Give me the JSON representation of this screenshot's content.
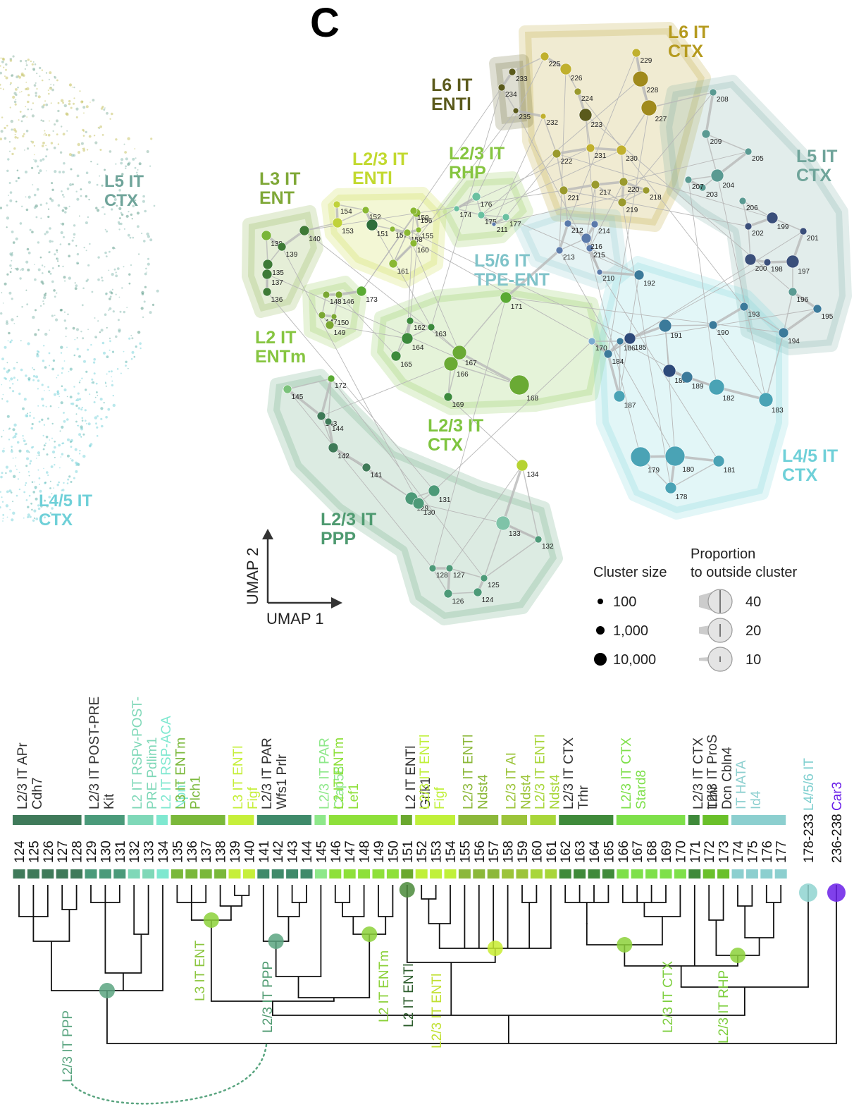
{
  "panel": "C",
  "left_labels": [
    {
      "lines": [
        "L5 IT",
        "CTX"
      ],
      "color": "#6fa49a"
    },
    {
      "lines": [
        "L4/5 IT",
        "CTX"
      ],
      "color": "#6fd0d8"
    }
  ],
  "umap": {
    "groups": [
      {
        "lines": [
          "L6 IT",
          "CTX"
        ],
        "color": "#b59a1e"
      },
      {
        "lines": [
          "L6 IT",
          "ENTl"
        ],
        "color": "#5b5a1c"
      },
      {
        "lines": [
          "L5 IT",
          "CTX"
        ],
        "color": "#6fa49a"
      },
      {
        "lines": [
          "L2/3 IT",
          "ENTl"
        ],
        "color": "#c2d92e"
      },
      {
        "lines": [
          "L2/3 IT",
          "RHP"
        ],
        "color": "#86c540"
      },
      {
        "lines": [
          "L3 IT",
          "ENT"
        ],
        "color": "#7fa837"
      },
      {
        "lines": [
          "L5/6 IT",
          "TPE-ENT"
        ],
        "color": "#7fc3c9"
      },
      {
        "lines": [
          "L2 IT",
          "ENTm"
        ],
        "color": "#86c540"
      },
      {
        "lines": [
          "L2/3 IT",
          "CTX"
        ],
        "color": "#7ec43f"
      },
      {
        "lines": [
          "L4/5 IT",
          "CTX"
        ],
        "color": "#6fd0d8"
      },
      {
        "lines": [
          "L2/3 IT",
          "PPP"
        ],
        "color": "#4e9a70"
      }
    ],
    "nodes": [
      "124",
      "125",
      "126",
      "127",
      "128",
      "129",
      "130",
      "131",
      "132",
      "133",
      "134",
      "135",
      "136",
      "137",
      "138",
      "139",
      "140",
      "141",
      "142",
      "143",
      "144",
      "145",
      "146",
      "147",
      "148",
      "149",
      "150",
      "151",
      "152",
      "153",
      "154",
      "155",
      "156",
      "157",
      "158",
      "159",
      "160",
      "161",
      "162",
      "163",
      "164",
      "165",
      "166",
      "167",
      "168",
      "169",
      "170",
      "171",
      "172",
      "173",
      "174",
      "175",
      "176",
      "177",
      "178",
      "179",
      "180",
      "181",
      "182",
      "183",
      "184",
      "185",
      "186",
      "187",
      "188",
      "189",
      "190",
      "191",
      "192",
      "193",
      "194",
      "195",
      "196",
      "197",
      "198",
      "199",
      "200",
      "201",
      "202",
      "203",
      "204",
      "205",
      "206",
      "207",
      "208",
      "209",
      "210",
      "211",
      "212",
      "213",
      "214",
      "215",
      "216",
      "217",
      "218",
      "219",
      "220",
      "221",
      "222",
      "223",
      "224",
      "225",
      "226",
      "227",
      "228",
      "229",
      "230",
      "231",
      "232",
      "233",
      "234",
      "235"
    ],
    "axes": {
      "y": "UMAP 2",
      "x": "UMAP 1"
    }
  },
  "legend": {
    "size_title": "Cluster size",
    "sizes": [
      "100",
      "1,000",
      "10,000"
    ],
    "proportion_title": [
      "Proportion",
      "to outside cluster"
    ],
    "proportions": [
      "40",
      "20",
      "10"
    ]
  },
  "dendrogram": {
    "groups": [
      {
        "lines": [
          "L2/3 IT APr",
          "Cdh7"
        ],
        "color": "#3f7a5a"
      },
      {
        "lines": [
          "L2/3 IT POST-PRE",
          "Kit"
        ],
        "color": "#4a9a7a"
      },
      {
        "lines": [
          "L2 IT RSPv-POST-",
          "PRE Pdlim1"
        ],
        "color": "#7fd8b8"
      },
      {
        "lines": [
          "L2 IT RSP-ACA",
          "Npnt"
        ],
        "color": "#7fe8d0"
      },
      {
        "lines": [
          "L3 IT ENTm",
          "Plch1"
        ],
        "color": "#7ab83a"
      },
      {
        "lines": [
          "L3 IT ENTl",
          "Figf"
        ],
        "color": "#c6ef3a"
      },
      {
        "lines": [
          "L2/3 IT PAR",
          "Wfs1 Prlr"
        ],
        "color": "#3f8a6a"
      },
      {
        "lines": [
          "L2/3 IT PAR",
          "Cfap58"
        ],
        "color": "#8ee88a"
      },
      {
        "lines": [
          "L2 IT ENTm",
          "Lef1"
        ],
        "color": "#8ee03a"
      },
      {
        "lines": [
          "L2 IT ENTl",
          "Grik1"
        ],
        "color": "#6aa82e"
      },
      {
        "lines": [
          "L2/3 IT ENTl",
          "Figf"
        ],
        "color": "#c0f03a"
      },
      {
        "lines": [
          "L2/3 IT ENTl",
          "Ndst4"
        ],
        "color": "#8cb83a"
      },
      {
        "lines": [
          "L2/3 IT AI",
          "Ndst4"
        ],
        "color": "#9cc43a"
      },
      {
        "lines": [
          "L2/3 IT ENTl",
          "Ndst4"
        ],
        "color": "#a8d63a"
      },
      {
        "lines": [
          "L2/3 IT CTX",
          "Trhr"
        ],
        "color": "#3f8a3a"
      },
      {
        "lines": [
          "L2/3 IT CTX",
          "Stard8"
        ],
        "color": "#7ee04a"
      },
      {
        "lines": [
          "L2/3 IT CTX",
          "Trhr"
        ],
        "color": "#3f8a3a"
      },
      {
        "lines": [
          "L2/3 IT ProS",
          "Dcn Cbln4"
        ],
        "color": "#6ac02a"
      },
      {
        "lines": [
          "IT HATA",
          "Id4"
        ],
        "color": "#8ccfcf"
      }
    ],
    "leaves": [
      "124",
      "125",
      "126",
      "127",
      "128",
      "129",
      "130",
      "131",
      "132",
      "133",
      "134",
      "135",
      "136",
      "137",
      "138",
      "139",
      "140",
      "141",
      "142",
      "143",
      "144",
      "145",
      "146",
      "147",
      "148",
      "149",
      "150",
      "151",
      "152",
      "153",
      "154",
      "155",
      "156",
      "157",
      "158",
      "159",
      "160",
      "161",
      "162",
      "163",
      "164",
      "165",
      "166",
      "167",
      "168",
      "169",
      "170",
      "171",
      "172",
      "173",
      "174",
      "175",
      "176",
      "177",
      "178-233",
      "236-238"
    ],
    "extra_headers": [
      {
        "text": "L4/5/6 IT",
        "color": "#7fcfcf"
      },
      {
        "text": "Car3",
        "color": "#6a1fe8"
      }
    ],
    "clades": [
      "L2/3 IT PPP",
      "L3 IT ENT",
      "L2/3 IT PPP",
      "L2 IT ENTm",
      "L2 IT ENTl",
      "L2/3 IT ENTl",
      "L2/3 IT CTX",
      "L2/3 IT RHP"
    ]
  }
}
